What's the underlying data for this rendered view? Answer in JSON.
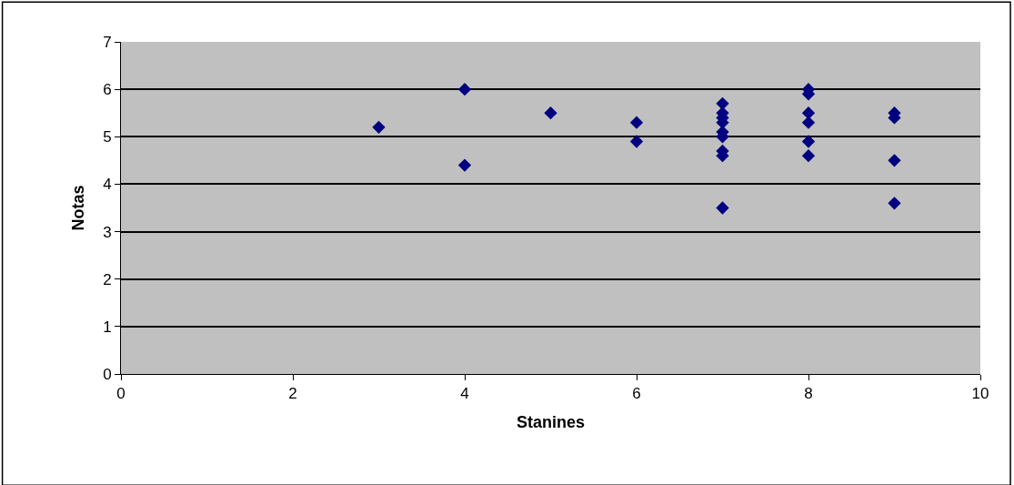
{
  "chart_data": {
    "type": "scatter",
    "xlabel": "Stanines",
    "ylabel": "Notas",
    "x": [
      3,
      4,
      4,
      5,
      6,
      6,
      7,
      7,
      7,
      7,
      7,
      7,
      7,
      7,
      7,
      8,
      8,
      8,
      8,
      8,
      8,
      9,
      9,
      9,
      9
    ],
    "series": [
      {
        "color": "#000080",
        "values": [
          5.2,
          6.0,
          4.4,
          5.5,
          5.3,
          4.9,
          5.7,
          5.5,
          5.4,
          5.3,
          5.1,
          5.0,
          4.7,
          4.6,
          3.5,
          6.0,
          5.9,
          5.5,
          5.3,
          4.9,
          4.6,
          5.5,
          5.4,
          4.5,
          3.6
        ]
      }
    ],
    "xlim": [
      0,
      10
    ],
    "xticks": [
      0,
      2,
      4,
      6,
      8,
      10
    ],
    "ylim": [
      0,
      7
    ],
    "yticks": [
      0,
      1,
      2,
      3,
      4,
      5,
      6,
      7
    ],
    "grid": "y",
    "marker": "diamond"
  }
}
